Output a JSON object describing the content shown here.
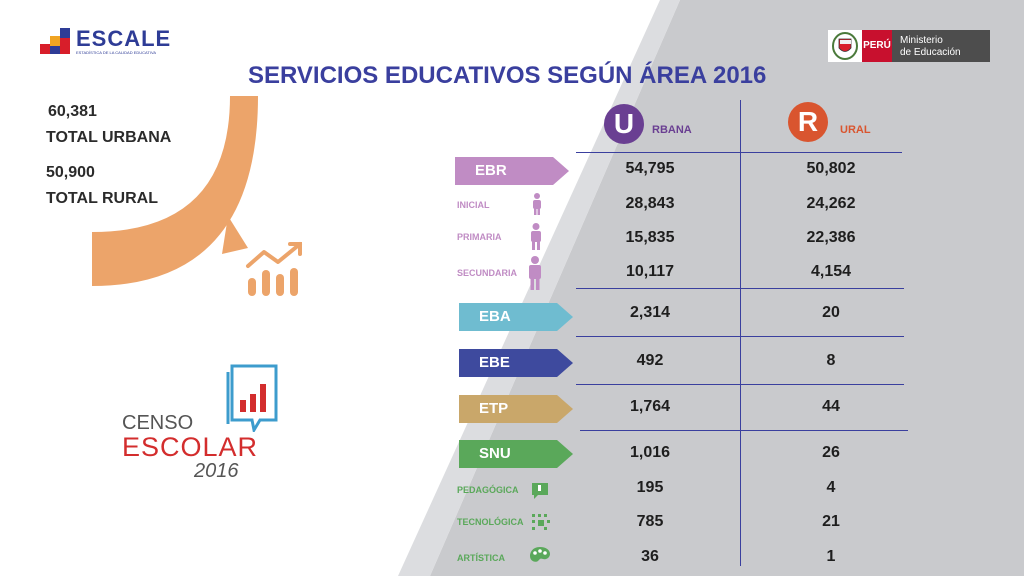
{
  "header": {
    "logo_text": "ESCALE",
    "logo_subtext": "ESTADÍSTICA DE LA CALIDAD EDUCATIVA",
    "title": "SERVICIOS EDUCATIVOS SEGÚN ÁREA 2016",
    "ministry_country": "PERÚ",
    "ministry_line1": "Ministerio",
    "ministry_line2": "de Educación"
  },
  "totals": {
    "urban_value": "60,381",
    "urban_label": "TOTAL URBANA",
    "rural_value": "50,900",
    "rural_label": "TOTAL RURAL"
  },
  "columns": {
    "urban_letter": "U",
    "urban_rest": "RBANA",
    "rural_letter": "R",
    "rural_rest": "URAL"
  },
  "rows": [
    {
      "label": "EBR",
      "urbana": "54,795",
      "rural": "50,802"
    },
    {
      "label": "INICIAL",
      "urbana": "28,843",
      "rural": "24,262"
    },
    {
      "label": "PRIMARIA",
      "urbana": "15,835",
      "rural": "22,386"
    },
    {
      "label": "SECUNDARIA",
      "urbana": "10,117",
      "rural": "4,154"
    },
    {
      "label": "EBA",
      "urbana": "2,314",
      "rural": "20"
    },
    {
      "label": "EBE",
      "urbana": "492",
      "rural": "8"
    },
    {
      "label": "ETP",
      "urbana": "1,764",
      "rural": "44"
    },
    {
      "label": "SNU",
      "urbana": "1,016",
      "rural": "26"
    },
    {
      "label": "PEDAGÓGICA",
      "urbana": "195",
      "rural": "4"
    },
    {
      "label": "TECNOLÓGICA",
      "urbana": "785",
      "rural": "21"
    },
    {
      "label": "ARTÍSTICA",
      "urbana": "36",
      "rural": "1"
    }
  ],
  "censo": {
    "line1": "CENSO",
    "line2": "ESCOLAR",
    "line3": "2016"
  },
  "colors": {
    "title": "#3a3f9e",
    "ebr": "#c08cc4",
    "eba": "#6fbcd0",
    "ebe": "#3e4a9e",
    "etp": "#c9a76a",
    "snu": "#5aa85a",
    "urban_badge": "#6a3f92",
    "rural_badge": "#d9552f",
    "arc": "#eca46a"
  },
  "icons": {
    "growth": "bar-growth-icon",
    "person": "person-icon",
    "pedagogica": "board-icon",
    "tecnologica": "circuit-icon",
    "artistica": "palette-icon",
    "censo": "book-chart-icon"
  }
}
